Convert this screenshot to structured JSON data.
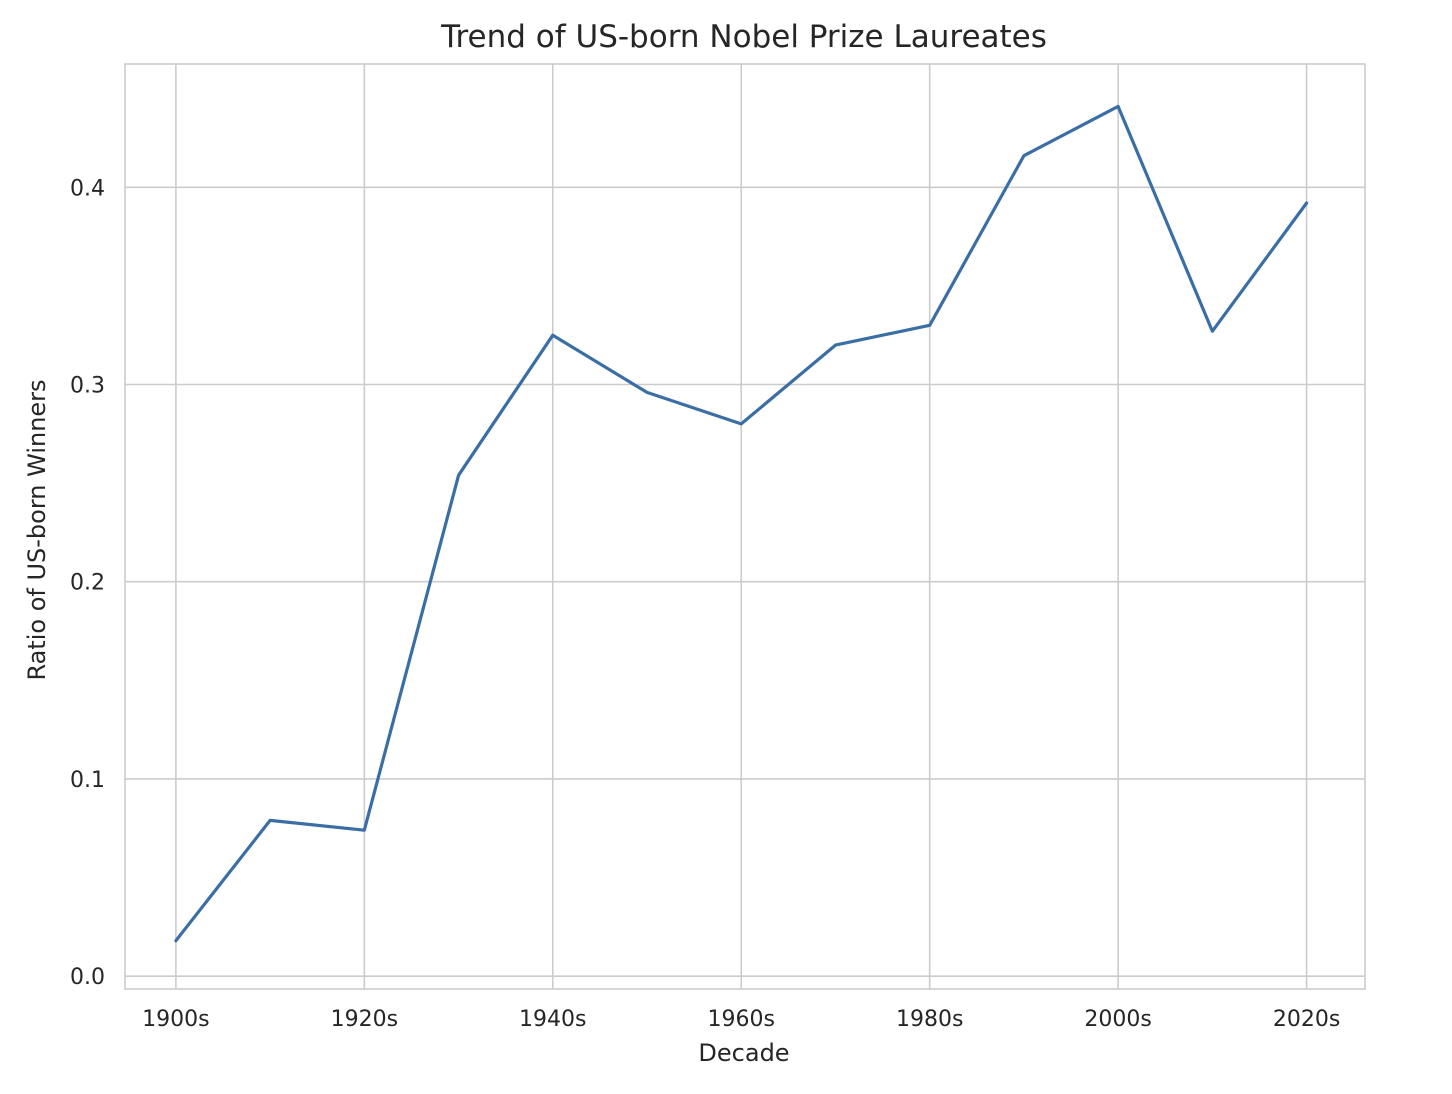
{
  "chart_data": {
    "type": "line",
    "title": "Trend of US-born Nobel Prize Laureates",
    "xlabel": "Decade",
    "ylabel": "Ratio of US-born Winners",
    "x": [
      1900,
      1910,
      1920,
      1930,
      1940,
      1950,
      1960,
      1970,
      1980,
      1990,
      2000,
      2010,
      2020
    ],
    "series": [
      {
        "values": [
          0.018,
          0.079,
          0.074,
          0.254,
          0.325,
          0.296,
          0.28,
          0.32,
          0.33,
          0.416,
          0.441,
          0.327,
          0.392
        ],
        "color": "#3a6ea5"
      }
    ],
    "xticks": [
      1900,
      1920,
      1940,
      1960,
      1980,
      2000,
      2020
    ],
    "xtick_labels": [
      "1900s",
      "1920s",
      "1940s",
      "1960s",
      "1980s",
      "2000s",
      "2020s"
    ],
    "yticks": [
      0.0,
      0.1,
      0.2,
      0.3,
      0.4
    ],
    "ytick_labels": [
      "0.0",
      "0.1",
      "0.2",
      "0.3",
      "0.4"
    ],
    "xlim": [
      1894.6,
      2026.2
    ],
    "ylim": [
      -0.0065,
      0.4625
    ],
    "grid": true
  }
}
